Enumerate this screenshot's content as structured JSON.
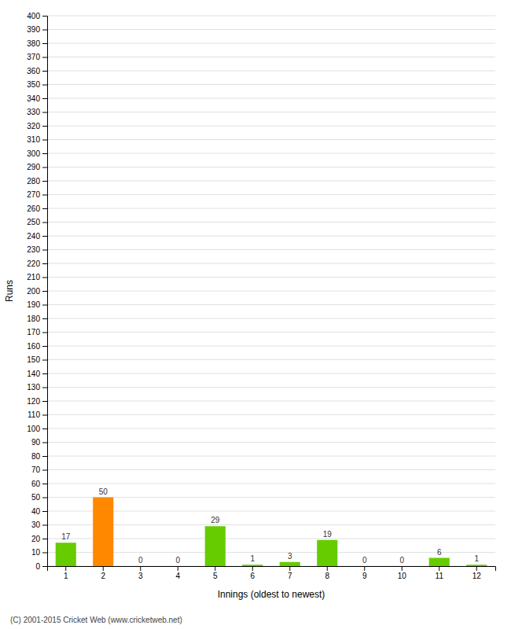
{
  "chart_data": {
    "type": "bar",
    "xlabel": "Innings (oldest to newest)",
    "ylabel": "Runs",
    "categories": [
      1,
      2,
      3,
      4,
      5,
      6,
      7,
      8,
      9,
      10,
      11,
      12
    ],
    "values": [
      17,
      50,
      0,
      0,
      29,
      1,
      3,
      19,
      0,
      0,
      6,
      1
    ],
    "colors": [
      "#66cc00",
      "#ff8800",
      "#66cc00",
      "#66cc00",
      "#66cc00",
      "#66cc00",
      "#66cc00",
      "#66cc00",
      "#66cc00",
      "#66cc00",
      "#66cc00",
      "#66cc00"
    ],
    "ylim": [
      0,
      400
    ],
    "yticks": [
      0,
      10,
      20,
      30,
      40,
      50,
      60,
      70,
      80,
      90,
      100,
      110,
      120,
      130,
      140,
      150,
      160,
      170,
      180,
      190,
      200,
      210,
      220,
      230,
      240,
      250,
      260,
      270,
      280,
      290,
      300,
      310,
      320,
      330,
      340,
      350,
      360,
      370,
      380,
      390,
      400
    ],
    "grid": true,
    "data_labels": true,
    "annotations": [
      "(C) 2001-2015 Cricket Web (www.cricketweb.net)"
    ]
  }
}
